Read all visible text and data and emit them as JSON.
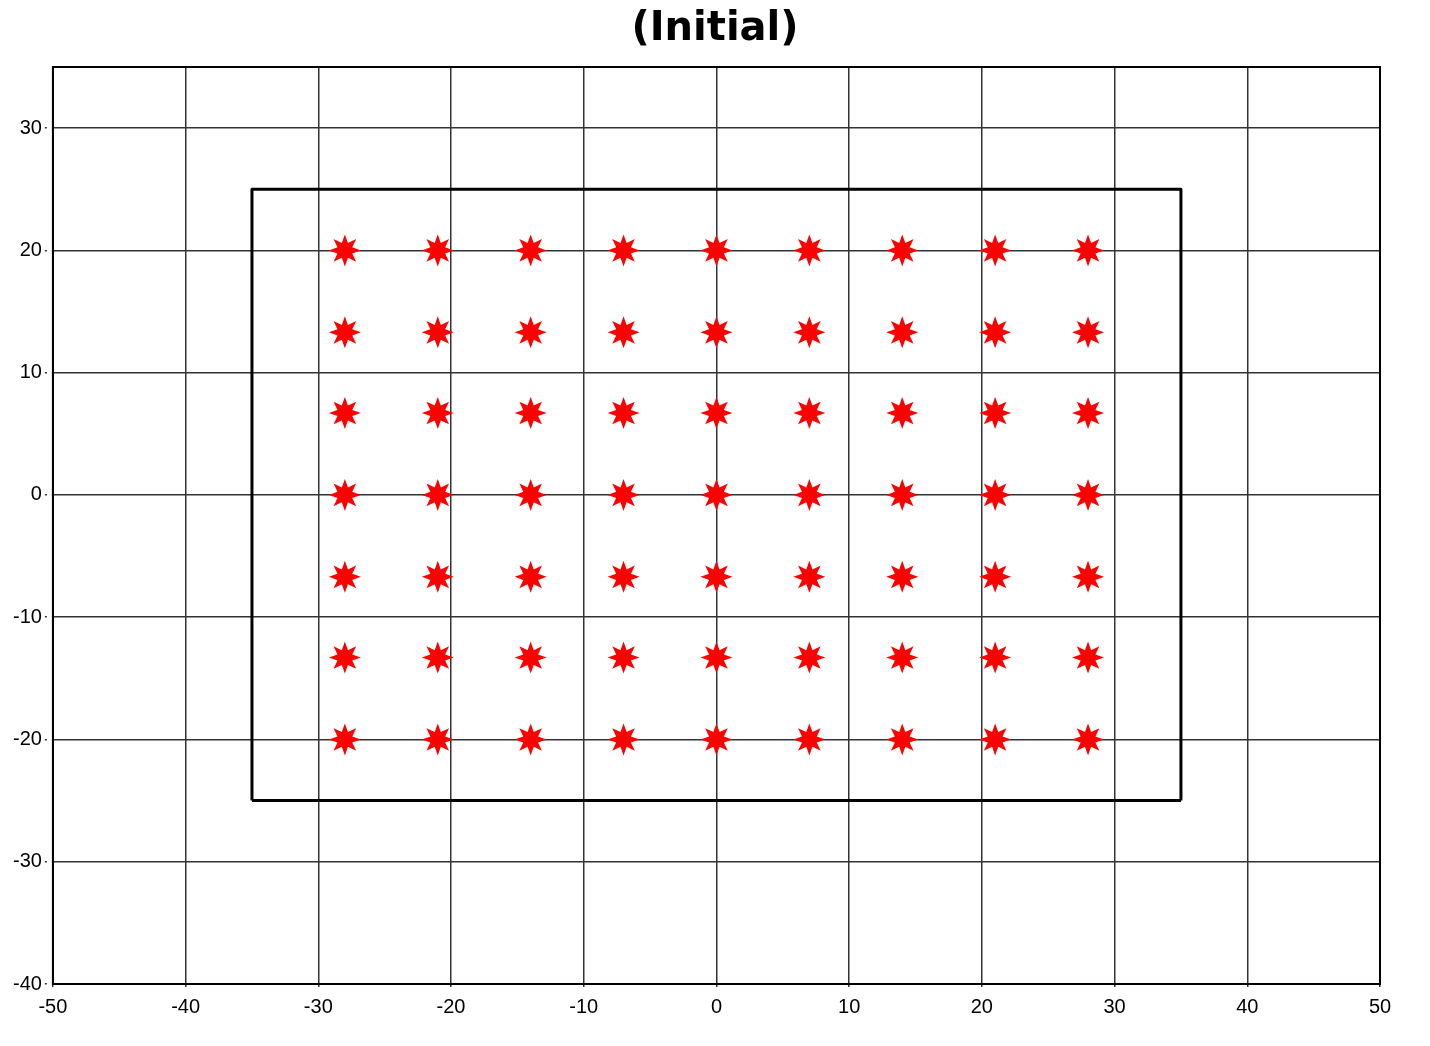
{
  "chart_data": {
    "type": "scatter",
    "title": "(Initial)",
    "xlim": [
      -50,
      50
    ],
    "xticks": [
      -50,
      -40,
      -30,
      -20,
      -10,
      0,
      10,
      20,
      30,
      40,
      50
    ],
    "ylim": [
      -40,
      35
    ],
    "yticks": [
      -40,
      -30,
      -20,
      -10,
      0,
      10,
      20,
      30
    ],
    "grid": true,
    "legend": false,
    "series": [
      {
        "type": "scatter",
        "color": "#ff0000",
        "marker": "star",
        "x": [
          -28,
          -21,
          -14,
          -7,
          0,
          7,
          14,
          21,
          28,
          -28,
          -21,
          -14,
          -7,
          0,
          7,
          14,
          21,
          28,
          -28,
          -21,
          -14,
          -7,
          0,
          7,
          14,
          21,
          28,
          -28,
          -21,
          -14,
          -7,
          0,
          7,
          14,
          21,
          28,
          -28,
          -21,
          -14,
          -7,
          0,
          7,
          14,
          21,
          28,
          -28,
          -21,
          -14,
          -7,
          0,
          7,
          14,
          21,
          28,
          -28,
          -21,
          -14,
          -7,
          0,
          7,
          14,
          21,
          28
        ],
        "values": [
          20,
          20,
          20,
          20,
          20,
          20,
          20,
          20,
          20,
          13.3,
          13.3,
          13.3,
          13.3,
          13.3,
          13.3,
          13.3,
          13.3,
          13.3,
          6.7,
          6.7,
          6.7,
          6.7,
          6.7,
          6.7,
          6.7,
          6.7,
          6.7,
          0,
          0,
          0,
          0,
          0,
          0,
          0,
          0,
          0,
          -6.7,
          -6.7,
          -6.7,
          -6.7,
          -6.7,
          -6.7,
          -6.7,
          -6.7,
          -6.7,
          -13.3,
          -13.3,
          -13.3,
          -13.3,
          -13.3,
          -13.3,
          -13.3,
          -13.3,
          -13.3,
          -20,
          -20,
          -20,
          -20,
          -20,
          -20,
          -20,
          -20,
          -20
        ]
      },
      {
        "type": "line",
        "color": "#000000",
        "marker": "none",
        "line_style": "solid",
        "x": [
          -35,
          -35,
          35,
          35
        ],
        "values": [
          -25,
          25,
          25,
          -25
        ]
      },
      {
        "type": "line",
        "color": "#000000",
        "marker": "none",
        "line_style": "solid",
        "x": [
          -35,
          35
        ],
        "values": [
          -25,
          -25
        ]
      }
    ]
  }
}
